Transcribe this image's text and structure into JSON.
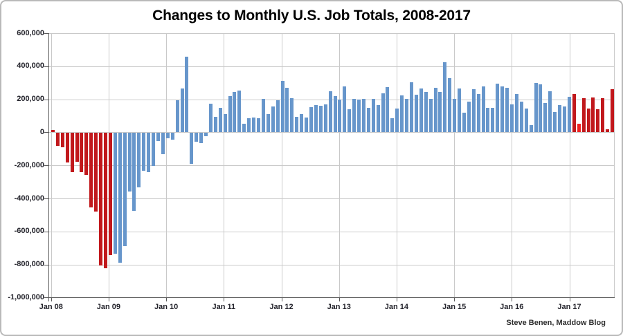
{
  "page": {
    "title": "Changes to Monthly U.S. Job Totals, 2008-2017",
    "attribution": "Steve Benen, Maddow Blog"
  },
  "colors": {
    "bar_red": "#C1181C",
    "bar_blue": "#6796CB",
    "bar_highlight_red": "#EF2020",
    "gridline": "#c9c9c9",
    "axis_line": "#595959",
    "label_text": "#23232b"
  },
  "chart_data": {
    "type": "bar",
    "title": "Changes to Monthly U.S. Job Totals, 2008-2017",
    "attribution": "Steve Benen, Maddow Blog",
    "xlabel": "",
    "ylabel": "",
    "ylim": [
      -1000000,
      600000
    ],
    "y_gridline_step": 200000,
    "grid": true,
    "y_tick_labels": [
      "600,000",
      "400,000",
      "200,000",
      "0",
      "-200,000",
      "-400,000",
      "-600,000",
      "-800,000",
      "-1,000,000"
    ],
    "x_tick_labels": [
      "Jan 08",
      "Jan 09",
      "Jan 10",
      "Jan 11",
      "Jan 12",
      "Jan 13",
      "Jan 14",
      "Jan 15",
      "Jan 16",
      "Jan 17"
    ],
    "months": [
      "2008-01",
      "2008-02",
      "2008-03",
      "2008-04",
      "2008-05",
      "2008-06",
      "2008-07",
      "2008-08",
      "2008-09",
      "2008-10",
      "2008-11",
      "2008-12",
      "2009-01",
      "2009-02",
      "2009-03",
      "2009-04",
      "2009-05",
      "2009-06",
      "2009-07",
      "2009-08",
      "2009-09",
      "2009-10",
      "2009-11",
      "2009-12",
      "2010-01",
      "2010-02",
      "2010-03",
      "2010-04",
      "2010-05",
      "2010-06",
      "2010-07",
      "2010-08",
      "2010-09",
      "2010-10",
      "2010-11",
      "2010-12",
      "2011-01",
      "2011-02",
      "2011-03",
      "2011-04",
      "2011-05",
      "2011-06",
      "2011-07",
      "2011-08",
      "2011-09",
      "2011-10",
      "2011-11",
      "2011-12",
      "2012-01",
      "2012-02",
      "2012-03",
      "2012-04",
      "2012-05",
      "2012-06",
      "2012-07",
      "2012-08",
      "2012-09",
      "2012-10",
      "2012-11",
      "2012-12",
      "2013-01",
      "2013-02",
      "2013-03",
      "2013-04",
      "2013-05",
      "2013-06",
      "2013-07",
      "2013-08",
      "2013-09",
      "2013-10",
      "2013-11",
      "2013-12",
      "2014-01",
      "2014-02",
      "2014-03",
      "2014-04",
      "2014-05",
      "2014-06",
      "2014-07",
      "2014-08",
      "2014-09",
      "2014-10",
      "2014-11",
      "2014-12",
      "2015-01",
      "2015-02",
      "2015-03",
      "2015-04",
      "2015-05",
      "2015-06",
      "2015-07",
      "2015-08",
      "2015-09",
      "2015-10",
      "2015-11",
      "2015-12",
      "2016-01",
      "2016-02",
      "2016-03",
      "2016-04",
      "2016-05",
      "2016-06",
      "2016-07",
      "2016-08",
      "2016-09",
      "2016-10",
      "2016-11",
      "2016-12",
      "2017-01",
      "2017-02",
      "2017-03",
      "2017-04",
      "2017-05",
      "2017-06",
      "2017-07",
      "2017-08",
      "2017-09",
      "2017-10"
    ],
    "values": [
      15000,
      -80000,
      -85000,
      -180000,
      -235000,
      -175000,
      -235000,
      -255000,
      -450000,
      -475000,
      -800000,
      -820000,
      -740000,
      -730000,
      -785000,
      -685000,
      -355000,
      -470000,
      -330000,
      -230000,
      -235000,
      -200000,
      -50000,
      -130000,
      -30000,
      -40000,
      195000,
      265000,
      460000,
      -185000,
      -55000,
      -60000,
      -20000,
      172000,
      95000,
      150000,
      110000,
      220000,
      246000,
      251000,
      54000,
      84000,
      90000,
      85000,
      202000,
      112000,
      157000,
      196000,
      311000,
      271000,
      205000,
      96000,
      110000,
      88000,
      153000,
      165000,
      161000,
      171000,
      247000,
      219000,
      197000,
      280000,
      141000,
      203000,
      199000,
      201000,
      149000,
      202000,
      164000,
      237000,
      274000,
      84000,
      144000,
      222000,
      203000,
      304000,
      229000,
      267000,
      243000,
      203000,
      271000,
      243000,
      423000,
      329000,
      201000,
      266000,
      119000,
      187000,
      260000,
      231000,
      277000,
      150000,
      149000,
      295000,
      280000,
      271000,
      168000,
      233000,
      186000,
      144000,
      43000,
      297000,
      291000,
      176000,
      249000,
      124000,
      164000,
      155000,
      216000,
      232000,
      50000,
      207000,
      145000,
      210000,
      138000,
      208000,
      18000,
      261000
    ],
    "color_segments": [
      {
        "from": 0,
        "to": 12,
        "color_key": "bar_red",
        "meaning": "red bars (Jan 2008 - Jan 2009)"
      },
      {
        "from": 13,
        "to": 108,
        "color_key": "bar_blue",
        "meaning": "blue bars (Feb 2009 - Jan 2017)"
      },
      {
        "from": 109,
        "to": 117,
        "color_key": "bar_red",
        "meaning": "red bars (Feb 2017 - Oct 2017)"
      }
    ],
    "highlight": {
      "index": 110,
      "color_key": "bar_highlight_red"
    }
  }
}
